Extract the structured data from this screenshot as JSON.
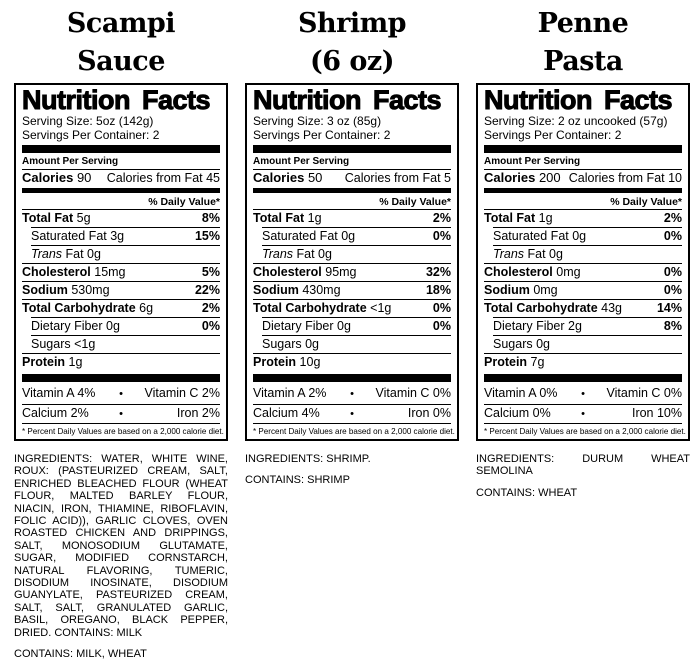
{
  "footnote": "* Percent Daily Values are based on a 2,000 calorie diet.",
  "labels": [
    {
      "title": [
        "Scampi",
        "Sauce"
      ],
      "heading": "Nutrition Facts",
      "serving_size": "Serving Size: 5oz (142g)",
      "servings_per_container": "Servings Per Container: 2",
      "amount_per_serving": "Amount Per Serving",
      "calories_label": "Calories",
      "calories_value": "90",
      "calories_from_fat": "Calories from Fat 45",
      "daily_value_header": "% Daily Value*",
      "nutrients": [
        {
          "name": "Total Fat",
          "amount": "5g",
          "dv": "8%",
          "bold": true
        },
        {
          "name": "Saturated Fat",
          "amount": "3g",
          "dv": "15%",
          "indent": true
        },
        {
          "name": "Trans",
          "amount": "Fat 0g",
          "italic": true,
          "indent": true
        },
        {
          "name": "Cholesterol",
          "amount": "15mg",
          "dv": "5%",
          "bold": true
        },
        {
          "name": "Sodium",
          "amount": "530mg",
          "dv": "22%",
          "bold": true
        },
        {
          "name": "Total Carbohydrate",
          "amount": "6g",
          "dv": "2%",
          "bold": true
        },
        {
          "name": "Dietary Fiber",
          "amount": "0g",
          "dv": "0%",
          "indent": true
        },
        {
          "name": "Sugars",
          "amount": "<1g",
          "indent": true
        },
        {
          "name": "Protein",
          "amount": "1g",
          "bold": true
        }
      ],
      "micros": [
        {
          "left": "Vitamin A 4%",
          "right": "Vitamin C 2%"
        },
        {
          "left": "Calcium 2%",
          "right": "Iron 2%"
        }
      ],
      "ingredients": "INGREDIENTS: WATER, WHITE WINE, ROUX: (PASTEURIZED CREAM, SALT, ENRICHED BLEACHED FLOUR (WHEAT FLOUR, MALTED BARLEY FLOUR, NIACIN, IRON, THIAMINE, RIBOFLAVIN, FOLIC ACID)), GARLIC CLOVES, OVEN ROASTED CHICKEN AND DRIPPINGS, SALT, MONOSODIUM GLUTAMATE, SUGAR, MODIFIED CORNSTARCH, NATURAL FLAVORING, TUMERIC, DISODIUM INOSINATE, DISODIUM GUANYLATE, PASTEURIZED CREAM, SALT, SALT, GRANULATED GARLIC, BASIL, OREGANO, BLACK PEPPER, DRIED. CONTAINS: MILK",
      "contains": "CONTAINS: MILK, WHEAT"
    },
    {
      "title": [
        "Shrimp",
        "(6 oz)"
      ],
      "heading": "Nutrition Facts",
      "serving_size": "Serving Size: 3 oz (85g)",
      "servings_per_container": "Servings Per Container: 2",
      "amount_per_serving": "Amount Per Serving",
      "calories_label": "Calories",
      "calories_value": "50",
      "calories_from_fat": "Calories from Fat 5",
      "daily_value_header": "% Daily Value*",
      "nutrients": [
        {
          "name": "Total Fat",
          "amount": "1g",
          "dv": "2%",
          "bold": true
        },
        {
          "name": "Saturated Fat",
          "amount": "0g",
          "dv": "0%",
          "indent": true
        },
        {
          "name": "Trans",
          "amount": "Fat 0g",
          "italic": true,
          "indent": true
        },
        {
          "name": "Cholesterol",
          "amount": "95mg",
          "dv": "32%",
          "bold": true
        },
        {
          "name": "Sodium",
          "amount": "430mg",
          "dv": "18%",
          "bold": true
        },
        {
          "name": "Total Carbohydrate",
          "amount": "<1g",
          "dv": "0%",
          "bold": true
        },
        {
          "name": "Dietary Fiber",
          "amount": "0g",
          "dv": "0%",
          "indent": true
        },
        {
          "name": "Sugars",
          "amount": "0g",
          "indent": true
        },
        {
          "name": "Protein",
          "amount": "10g",
          "bold": true
        }
      ],
      "micros": [
        {
          "left": "Vitamin A 2%",
          "right": "Vitamin C 0%"
        },
        {
          "left": "Calcium 4%",
          "right": "Iron 0%"
        }
      ],
      "ingredients": "INGREDIENTS: SHRIMP.",
      "contains": "CONTAINS: SHRIMP"
    },
    {
      "title": [
        "Penne",
        "Pasta"
      ],
      "heading": "Nutrition Facts",
      "serving_size": "Serving Size: 2 oz uncooked (57g)",
      "servings_per_container": "Servings Per Container: 2",
      "amount_per_serving": "Amount Per Serving",
      "calories_label": "Calories",
      "calories_value": "200",
      "calories_from_fat": "Calories from Fat 10",
      "daily_value_header": "% Daily Value*",
      "nutrients": [
        {
          "name": "Total Fat",
          "amount": "1g",
          "dv": "2%",
          "bold": true
        },
        {
          "name": "Saturated Fat",
          "amount": "0g",
          "dv": "0%",
          "indent": true
        },
        {
          "name": "Trans",
          "amount": "Fat 0g",
          "italic": true,
          "indent": true
        },
        {
          "name": "Cholesterol",
          "amount": "0mg",
          "dv": "0%",
          "bold": true
        },
        {
          "name": "Sodium",
          "amount": "0mg",
          "dv": "0%",
          "bold": true
        },
        {
          "name": "Total Carbohydrate",
          "amount": "43g",
          "dv": "14%",
          "bold": true
        },
        {
          "name": "Dietary Fiber",
          "amount": "2g",
          "dv": "8%",
          "indent": true
        },
        {
          "name": "Sugars",
          "amount": "0g",
          "indent": true
        },
        {
          "name": "Protein",
          "amount": "7g",
          "bold": true
        }
      ],
      "micros": [
        {
          "left": "Vitamin A 0%",
          "right": "Vitamin C 0%"
        },
        {
          "left": "Calcium 0%",
          "right": "Iron 10%"
        }
      ],
      "ingredients": "INGREDIENTS: DURUM WHEAT SEMOLINA",
      "contains": "CONTAINS: WHEAT"
    }
  ]
}
